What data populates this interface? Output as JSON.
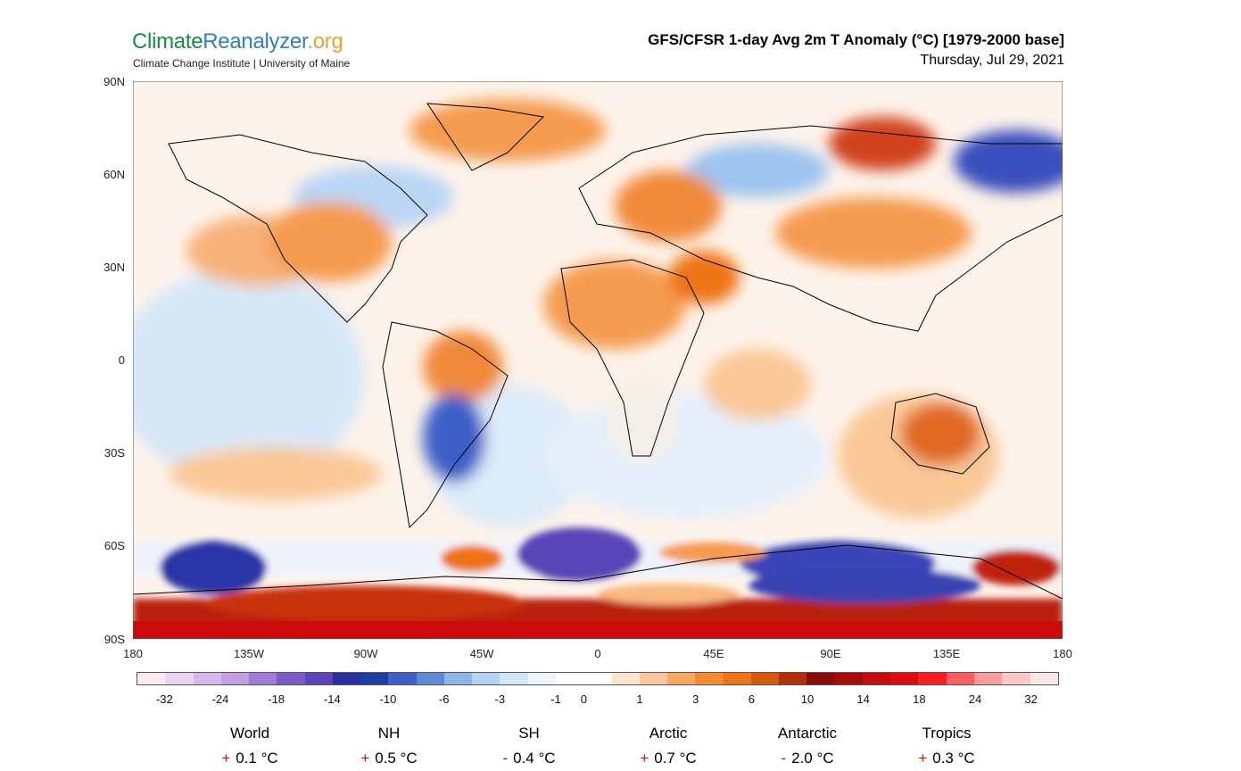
{
  "brand": {
    "part1": "Climate",
    "part2": "Reanalyzer",
    "part3": ".org",
    "subtitle": "Climate Change Institute | University of Maine"
  },
  "header": {
    "title": "GFS/CFSR 1-day Avg 2m T Anomaly (°C) [1979-2000 base]",
    "date": "Thursday, Jul 29, 2021"
  },
  "lat_labels": [
    "90N",
    "60N",
    "30N",
    "0",
    "30S",
    "60S",
    "90S"
  ],
  "lon_labels": [
    "180",
    "135W",
    "90W",
    "45W",
    "0",
    "45E",
    "90E",
    "135E",
    "180"
  ],
  "colorbar": {
    "colors": [
      "#fde9ef",
      "#e9d3f2",
      "#d6b7ea",
      "#c59ee2",
      "#a47bd8",
      "#7c5bc8",
      "#5a44b8",
      "#2a2fa0",
      "#1b3f9c",
      "#3d60c8",
      "#5c8ad8",
      "#8ab6ea",
      "#b3d3f4",
      "#d3e6f8",
      "#edf5fc",
      "#ffffff",
      "#ffffff",
      "#fde4cc",
      "#fbc79a",
      "#f9a860",
      "#f78a30",
      "#ee7418",
      "#d45a10",
      "#b0300c",
      "#8a0c08",
      "#a80a0a",
      "#c80c0c",
      "#e00c0c",
      "#ff1c1c",
      "#f86060",
      "#fa9c9c",
      "#fcc8c8",
      "#fde6e6"
    ],
    "labels": [
      "-32",
      "-24",
      "-18",
      "-14",
      "-10",
      "-6",
      "-3",
      "-1",
      "0",
      "1",
      "3",
      "6",
      "10",
      "14",
      "18",
      "24",
      "32"
    ]
  },
  "stats": [
    {
      "name": "World",
      "sign": "+",
      "value": "0.1 °C",
      "color": "#d01010"
    },
    {
      "name": "NH",
      "sign": "+",
      "value": "0.5 °C",
      "color": "#d01010"
    },
    {
      "name": "SH",
      "sign": "-",
      "value": "0.4 °C",
      "color": "#1030c0"
    },
    {
      "name": "Arctic",
      "sign": "+",
      "value": "0.7 °C",
      "color": "#d01010"
    },
    {
      "name": "Antarctic",
      "sign": "-",
      "value": "2.0 °C",
      "color": "#1030c0"
    },
    {
      "name": "Tropics",
      "sign": "+",
      "value": "0.3 °C",
      "color": "#d01010"
    }
  ]
}
